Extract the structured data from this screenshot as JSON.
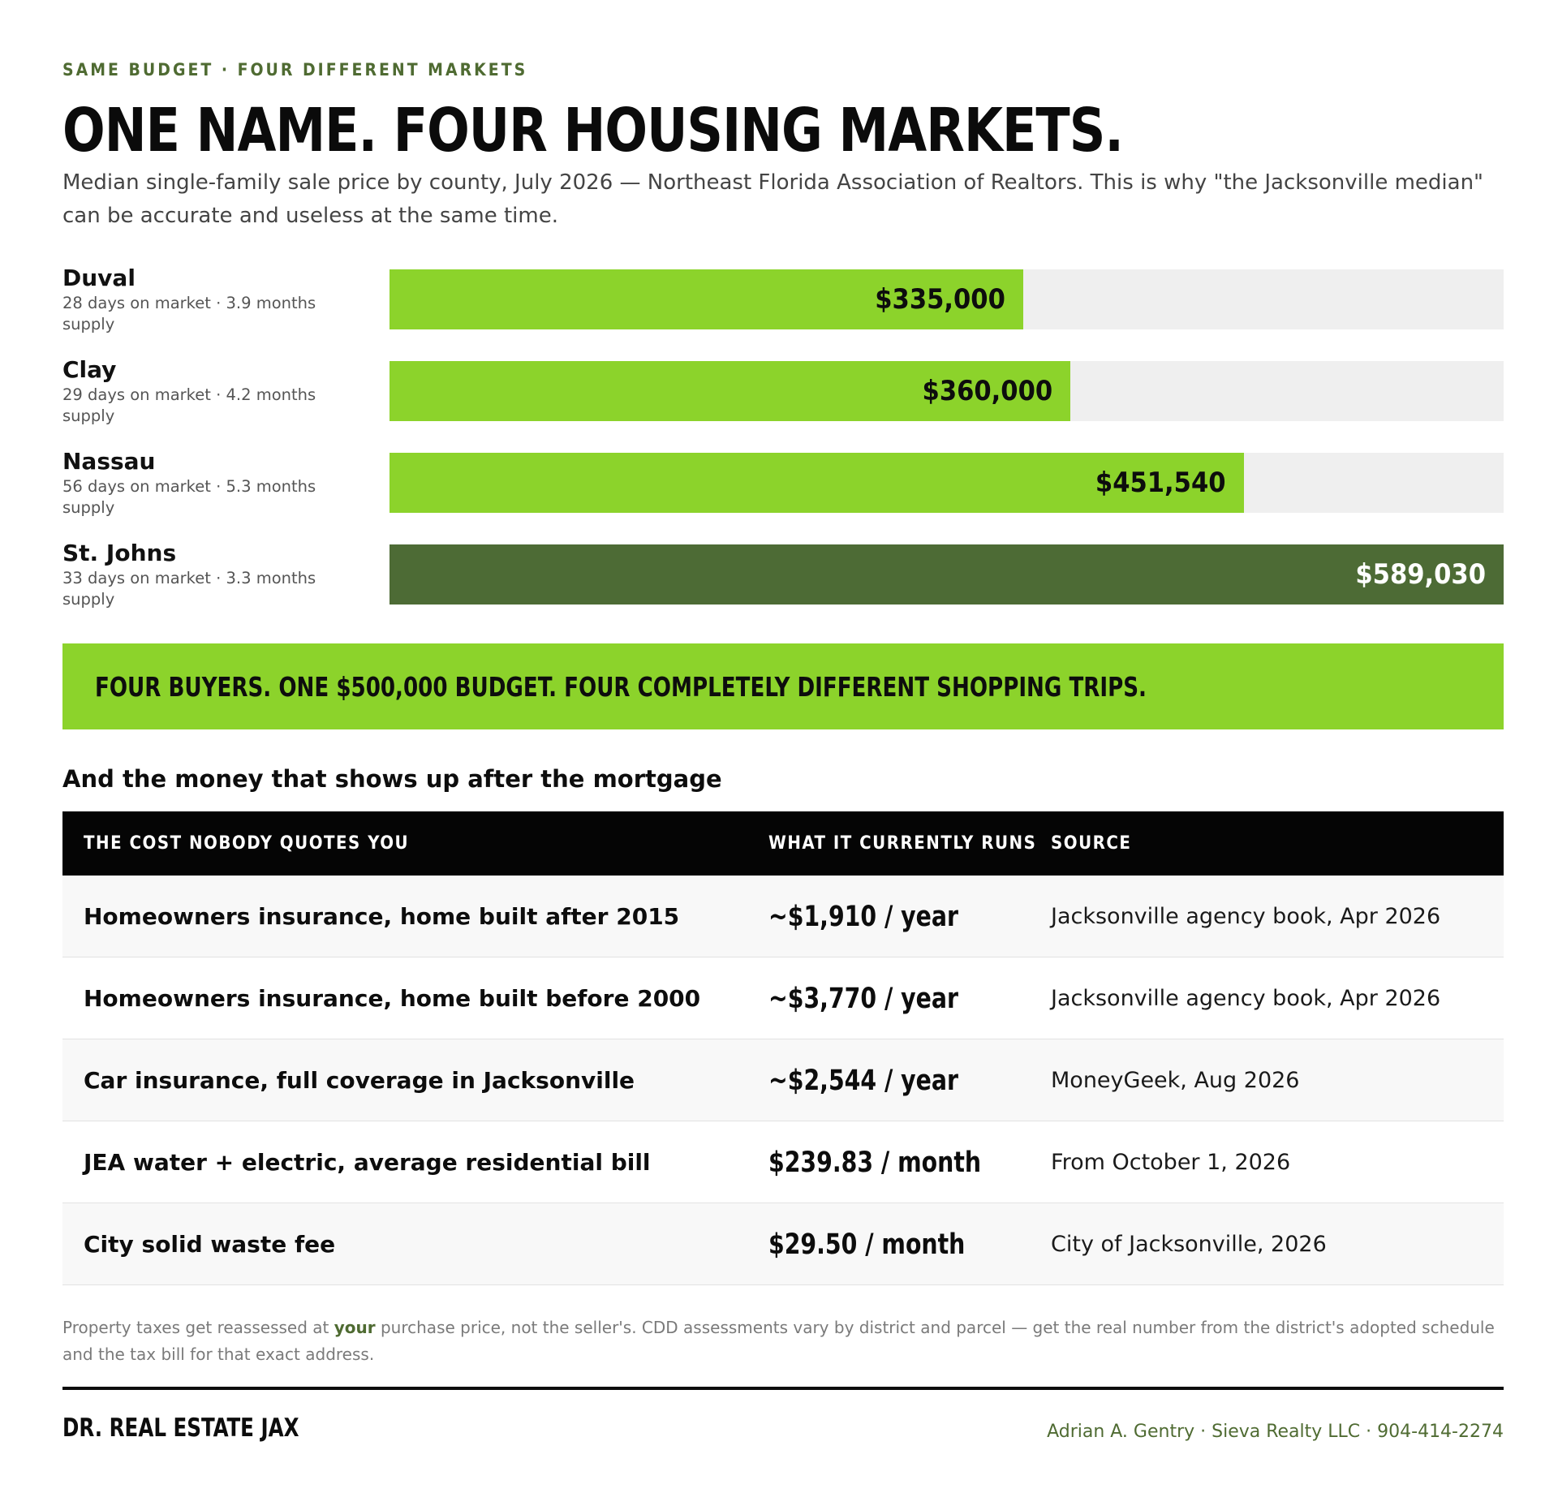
{
  "header": {
    "eyebrow": "SAME BUDGET · FOUR DIFFERENT MARKETS",
    "title": "ONE NAME. FOUR HOUSING MARKETS.",
    "subtitle": "Median single-family sale price by county, July 2026 — Northeast Florida Association of Realtors. This is why \"the Jacksonville median\" can be accurate and useless at the same time."
  },
  "colors": {
    "bar": "#8cd32b",
    "bar_highlight": "#4d6b35",
    "track": "#efefef",
    "accent_text": "#4f6b32"
  },
  "chart_data": {
    "type": "bar",
    "orientation": "horizontal",
    "title": "",
    "xlabel": "",
    "ylabel": "",
    "categories": [
      "Duval",
      "Clay",
      "Nassau",
      "St. Johns"
    ],
    "values": [
      335000,
      360000,
      451540,
      589030
    ],
    "value_labels": [
      "$335,000",
      "$360,000",
      "$451,540",
      "$589,030"
    ],
    "details": [
      "28 days on market · 3.9 months supply",
      "29 days on market · 4.2 months supply",
      "56 days on market · 5.3 months supply",
      "33 days on market · 3.3 months supply"
    ],
    "highlight": [
      false,
      false,
      false,
      true
    ],
    "xlim": [
      0,
      589030
    ],
    "grid": false,
    "legend": "none"
  },
  "banner": {
    "text": "FOUR BUYERS. ONE $500,000 BUDGET. FOUR COMPLETELY DIFFERENT SHOPPING TRIPS."
  },
  "costs": {
    "heading": "And the money that shows up after the mortgage",
    "columns": [
      "THE COST NOBODY QUOTES YOU",
      "WHAT IT CURRENTLY RUNS",
      "SOURCE"
    ],
    "rows": [
      {
        "item": "Homeowners insurance, home built after 2015",
        "cost": "~$1,910 / year",
        "source": "Jacksonville agency book, Apr 2026"
      },
      {
        "item": "Homeowners insurance, home built before 2000",
        "cost": "~$3,770 / year",
        "source": "Jacksonville agency book, Apr 2026"
      },
      {
        "item": "Car insurance, full coverage in Jacksonville",
        "cost": "~$2,544 / year",
        "source": "MoneyGeek, Aug 2026"
      },
      {
        "item": "JEA water + electric, average residential bill",
        "cost": "$239.83 / month",
        "source": "From October 1, 2026"
      },
      {
        "item": "City solid waste fee",
        "cost": "$29.50 / month",
        "source": "City of Jacksonville, 2026"
      }
    ]
  },
  "footnote": {
    "before": "Property taxes get reassessed at ",
    "emphasis": "your",
    "after": " purchase price, not the seller's. CDD assessments vary by district and parcel — get the real number from the district's adopted schedule and the tax bill for that exact address."
  },
  "footer": {
    "brand": "DR. REAL ESTATE JAX",
    "contact": "Adrian A. Gentry · Sieva Realty LLC · 904-414-2274"
  }
}
